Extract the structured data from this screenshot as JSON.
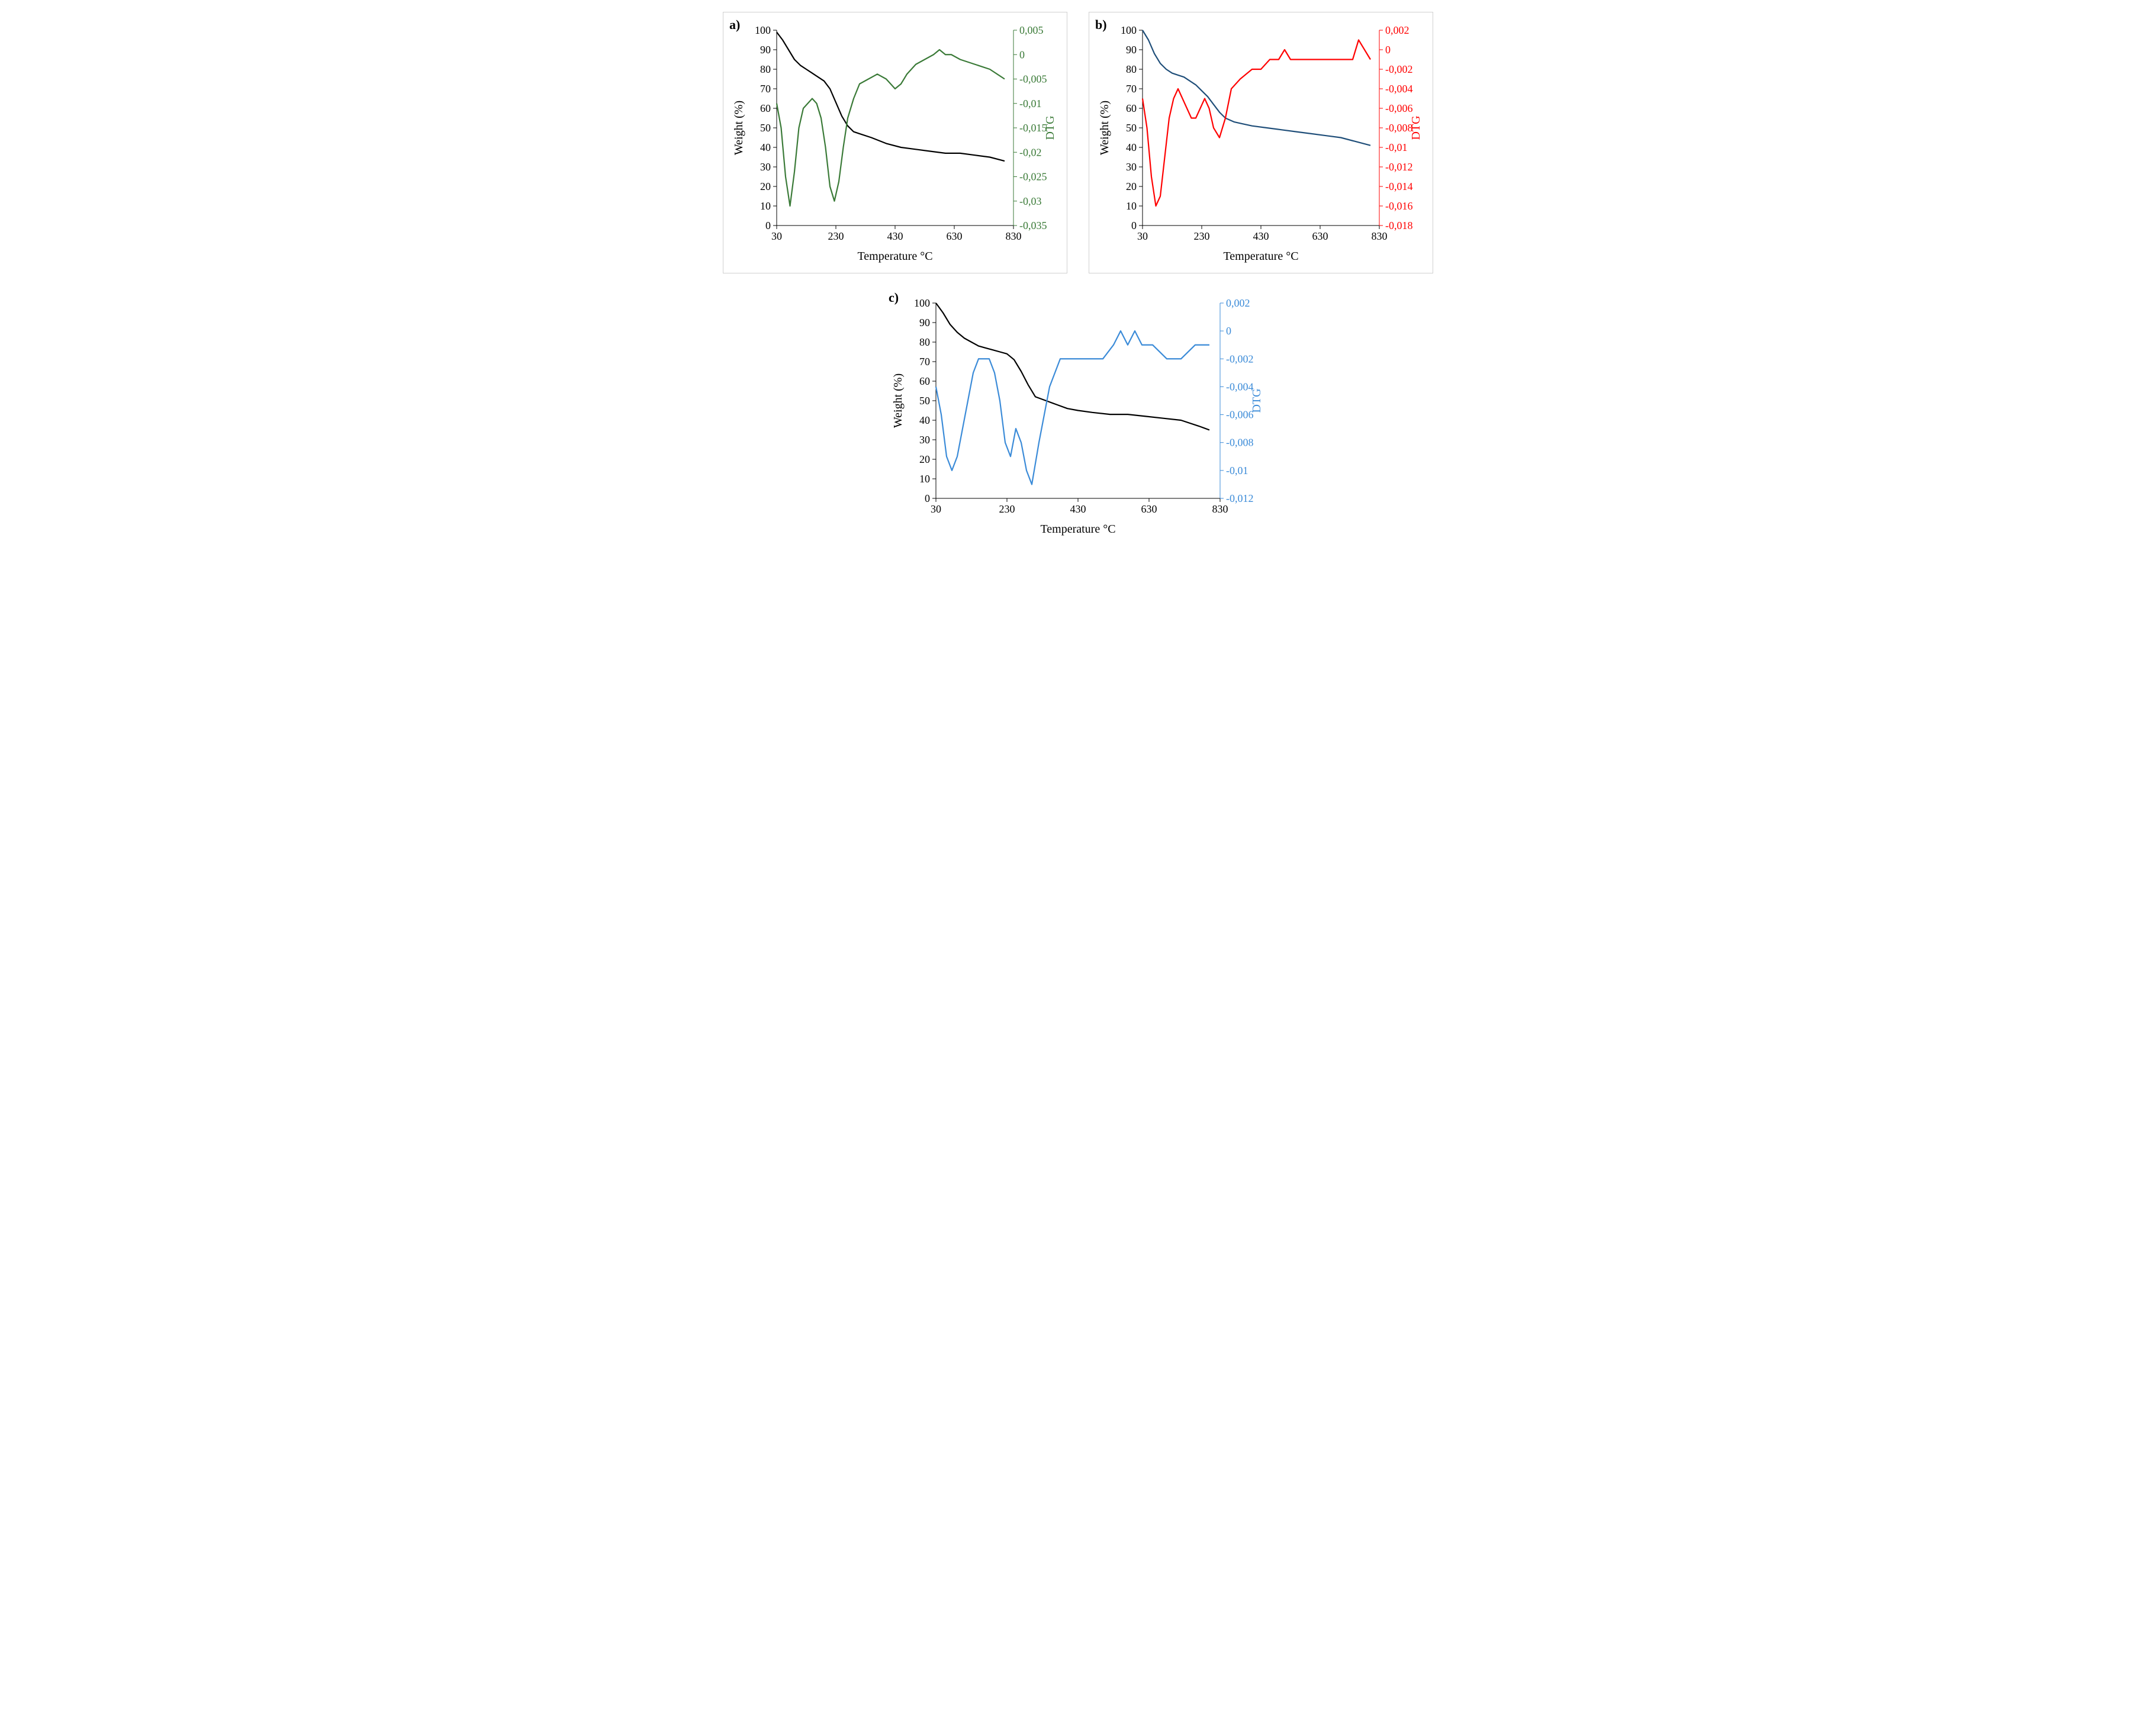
{
  "figure": {
    "background_color": "#ffffff",
    "border_color": "#d0d0d0",
    "font_family": "Times New Roman",
    "axis_text_fontsize": 18,
    "axis_title_fontsize": 20,
    "label_fontsize": 22,
    "panels": {
      "a": {
        "label": "a)",
        "xlabel": "Temperature °C",
        "yleft_label": "Weight (%)",
        "yright_label": "DTG",
        "xlim": [
          30,
          830
        ],
        "xtick_step": 200,
        "xticks": [
          30,
          230,
          430,
          630,
          830
        ],
        "yleft_lim": [
          0,
          100
        ],
        "yleft_tick_step": 10,
        "yleft_ticks": [
          0,
          10,
          20,
          30,
          40,
          50,
          60,
          70,
          80,
          90,
          100
        ],
        "yright_lim": [
          -0.035,
          0.005
        ],
        "yright_ticks": [
          0.005,
          0,
          -0.005,
          -0.01,
          -0.015,
          -0.02,
          -0.025,
          -0.03,
          -0.035
        ],
        "weight_color": "#000000",
        "dtg_color": "#3a7a37",
        "yright_text_color": "#3a7a37",
        "line_width": 2.2,
        "weight_x": [
          30,
          50,
          70,
          90,
          110,
          130,
          150,
          170,
          190,
          210,
          230,
          250,
          270,
          290,
          310,
          350,
          400,
          450,
          500,
          550,
          600,
          650,
          700,
          750,
          800
        ],
        "weight_y": [
          99,
          95,
          90,
          85,
          82,
          80,
          78,
          76,
          74,
          70,
          63,
          56,
          51,
          48,
          47,
          45,
          42,
          40,
          39,
          38,
          37,
          37,
          36,
          35,
          33
        ],
        "dtg_x": [
          30,
          45,
          60,
          75,
          90,
          105,
          120,
          135,
          150,
          165,
          180,
          195,
          210,
          225,
          240,
          255,
          270,
          290,
          310,
          340,
          370,
          400,
          430,
          450,
          470,
          500,
          530,
          560,
          580,
          600,
          620,
          650,
          700,
          750,
          800
        ],
        "dtg_y": [
          -0.01,
          -0.015,
          -0.025,
          -0.031,
          -0.024,
          -0.015,
          -0.011,
          -0.01,
          -0.009,
          -0.01,
          -0.013,
          -0.019,
          -0.027,
          -0.03,
          -0.026,
          -0.019,
          -0.013,
          -0.009,
          -0.006,
          -0.005,
          -0.004,
          -0.005,
          -0.007,
          -0.006,
          -0.004,
          -0.002,
          -0.001,
          0.0,
          0.001,
          0.0,
          0.0,
          -0.001,
          -0.002,
          -0.003,
          -0.005
        ]
      },
      "b": {
        "label": "b)",
        "xlabel": "Temperature °C",
        "yleft_label": "Weight (%)",
        "yright_label": "DTG",
        "xlim": [
          30,
          830
        ],
        "xtick_step": 200,
        "xticks": [
          30,
          230,
          430,
          630,
          830
        ],
        "yleft_lim": [
          0,
          100
        ],
        "yleft_tick_step": 10,
        "yleft_ticks": [
          0,
          10,
          20,
          30,
          40,
          50,
          60,
          70,
          80,
          90,
          100
        ],
        "yright_lim": [
          -0.018,
          0.002
        ],
        "yright_ticks": [
          0.002,
          0,
          -0.002,
          -0.004,
          -0.006,
          -0.008,
          -0.01,
          -0.012,
          -0.014,
          -0.016,
          -0.018
        ],
        "weight_color": "#1f4e79",
        "dtg_color": "#ff0000",
        "yright_text_color": "#ff0000",
        "line_width": 2.2,
        "weight_x": [
          30,
          50,
          70,
          90,
          110,
          130,
          150,
          170,
          190,
          210,
          230,
          250,
          270,
          290,
          310,
          340,
          370,
          400,
          450,
          500,
          550,
          600,
          650,
          700,
          750,
          800
        ],
        "weight_y": [
          100,
          95,
          88,
          83,
          80,
          78,
          77,
          76,
          74,
          72,
          69,
          66,
          62,
          58,
          55,
          53,
          52,
          51,
          50,
          49,
          48,
          47,
          46,
          45,
          43,
          41
        ],
        "dtg_x": [
          30,
          45,
          60,
          75,
          90,
          105,
          120,
          135,
          150,
          165,
          180,
          195,
          210,
          225,
          240,
          255,
          270,
          290,
          310,
          330,
          360,
          400,
          430,
          460,
          490,
          510,
          530,
          560,
          600,
          650,
          700,
          740,
          760,
          780,
          800
        ],
        "dtg_y": [
          -0.005,
          -0.008,
          -0.013,
          -0.016,
          -0.015,
          -0.011,
          -0.007,
          -0.005,
          -0.004,
          -0.005,
          -0.006,
          -0.007,
          -0.007,
          -0.006,
          -0.005,
          -0.006,
          -0.008,
          -0.009,
          -0.007,
          -0.004,
          -0.003,
          -0.002,
          -0.002,
          -0.001,
          -0.001,
          0.0,
          -0.001,
          -0.001,
          -0.001,
          -0.001,
          -0.001,
          -0.001,
          0.001,
          0.0,
          -0.001
        ]
      },
      "c": {
        "label": "c)",
        "xlabel": "Temperature °C",
        "yleft_label": "Weight (%)",
        "yright_label": "DTG",
        "xlim": [
          30,
          830
        ],
        "xtick_step": 200,
        "xticks": [
          30,
          230,
          430,
          630,
          830
        ],
        "yleft_lim": [
          0,
          100
        ],
        "yleft_tick_step": 10,
        "yleft_ticks": [
          0,
          10,
          20,
          30,
          40,
          50,
          60,
          70,
          80,
          90,
          100
        ],
        "yright_lim": [
          -0.012,
          0.002
        ],
        "yright_ticks": [
          0.002,
          0,
          -0.002,
          -0.004,
          -0.006,
          -0.008,
          -0.01,
          -0.012
        ],
        "weight_color": "#000000",
        "dtg_color": "#3b8bd8",
        "yright_text_color": "#3b8bd8",
        "line_width": 2.2,
        "weight_x": [
          30,
          50,
          70,
          90,
          110,
          130,
          150,
          170,
          190,
          210,
          230,
          250,
          270,
          290,
          310,
          340,
          370,
          400,
          430,
          470,
          520,
          570,
          620,
          670,
          720,
          770,
          800
        ],
        "weight_y": [
          100,
          95,
          89,
          85,
          82,
          80,
          78,
          77,
          76,
          75,
          74,
          71,
          65,
          58,
          52,
          50,
          48,
          46,
          45,
          44,
          43,
          43,
          42,
          41,
          40,
          37,
          35
        ],
        "dtg_x": [
          30,
          45,
          60,
          75,
          90,
          105,
          120,
          135,
          150,
          165,
          180,
          195,
          210,
          225,
          240,
          255,
          270,
          285,
          300,
          320,
          350,
          380,
          410,
          440,
          470,
          500,
          530,
          550,
          570,
          590,
          610,
          640,
          680,
          720,
          760,
          800
        ],
        "dtg_y": [
          -0.004,
          -0.006,
          -0.009,
          -0.01,
          -0.009,
          -0.007,
          -0.005,
          -0.003,
          -0.002,
          -0.002,
          -0.002,
          -0.003,
          -0.005,
          -0.008,
          -0.009,
          -0.007,
          -0.008,
          -0.01,
          -0.011,
          -0.008,
          -0.004,
          -0.002,
          -0.002,
          -0.002,
          -0.002,
          -0.002,
          -0.001,
          0.0,
          -0.001,
          0.0,
          -0.001,
          -0.001,
          -0.002,
          -0.002,
          -0.001,
          -0.001
        ]
      }
    }
  }
}
